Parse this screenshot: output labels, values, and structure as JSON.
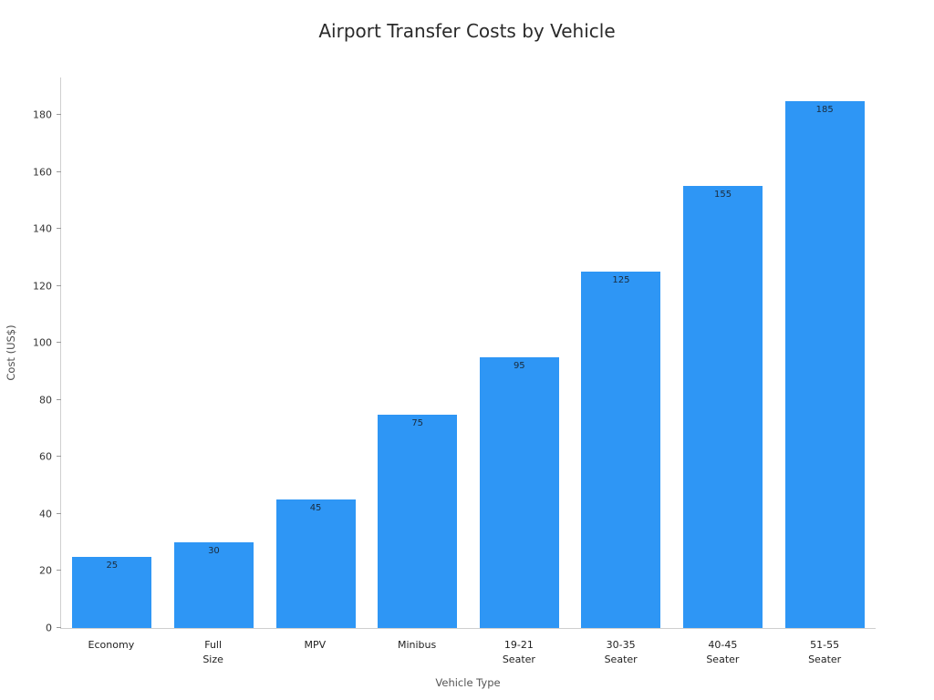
{
  "chart_data": {
    "type": "bar",
    "title": "Airport Transfer Costs by Vehicle",
    "xlabel": "Vehicle Type",
    "ylabel": "Cost (US$)",
    "categories": [
      "Economy",
      "Full\nSize",
      "MPV",
      "Minibus",
      "19-21\nSeater",
      "30-35\nSeater",
      "40-45\nSeater",
      "51-55\nSeater"
    ],
    "values": [
      25,
      30,
      45,
      75,
      95,
      125,
      155,
      185
    ],
    "value_labels": [
      "25",
      "30",
      "45",
      "75",
      "95",
      "125",
      "155",
      "185"
    ],
    "ylim": [
      0,
      193.5
    ],
    "yticks": [
      0,
      20,
      40,
      60,
      80,
      100,
      120,
      140,
      160,
      180
    ],
    "grid": false,
    "legend_position": "none",
    "bar_color": "#2e96f5",
    "value_label_color": "#1a2b3c",
    "axis_line_color": "#cfcfcf"
  }
}
